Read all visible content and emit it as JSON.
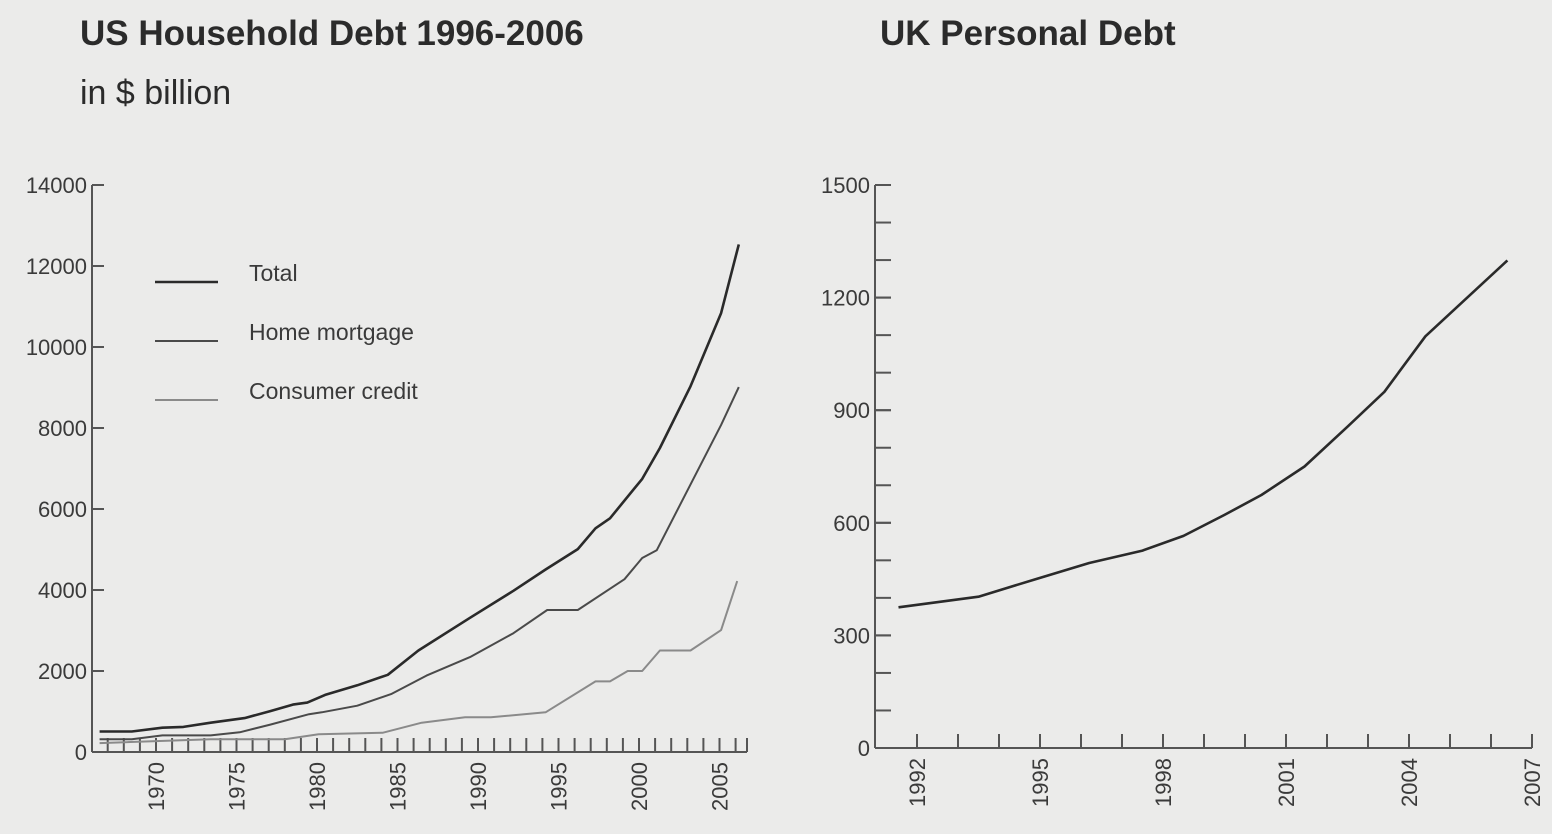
{
  "chart_data": [
    {
      "type": "line",
      "title": "US Household Debt 1996-2006",
      "subtitle": "in $ billion",
      "xlabel": "",
      "ylabel": "",
      "xlim": [
        1965.7,
        2007
      ],
      "ylim": [
        0,
        14000
      ],
      "yticks": [
        0,
        2000,
        4000,
        6000,
        8000,
        10000,
        12000,
        14000
      ],
      "xtick_labels": [
        1970,
        1975,
        1980,
        1985,
        1990,
        1995,
        2000,
        2005
      ],
      "minor_xticks_every": 1,
      "grid": false,
      "legend_placement": "top-left",
      "series": [
        {
          "name": "Total",
          "color": "#2a2a2a",
          "x": [
            1966.5,
            1968.5,
            1970.4,
            1971.7,
            1973.4,
            1975.5,
            1977.1,
            1978.5,
            1979.4,
            1980.5,
            1982.5,
            1984.4,
            1986.3,
            1989.5,
            1992.2,
            1994.2,
            1996.2,
            1997.3,
            1998.2,
            2000.2,
            2001.3,
            2003.2,
            2005.1,
            2006.2
          ],
          "y": [
            505,
            505,
            600,
            620,
            724,
            838,
            1010,
            1171,
            1219,
            1410,
            1648,
            1905,
            2505,
            3314,
            3981,
            4505,
            5010,
            5524,
            5771,
            6743,
            7505,
            9029,
            10838,
            12533
          ]
        },
        {
          "name": "Home mortgage",
          "color": "#4a4a4a",
          "x": [
            1966.5,
            1968.5,
            1970.4,
            1973.4,
            1975.2,
            1977.1,
            1979.5,
            1980.3,
            1982.5,
            1984.6,
            1986.8,
            1989.5,
            1992.2,
            1994.3,
            1996.2,
            1999.1,
            2000.2,
            2001.1,
            2005.1,
            2006.2
          ],
          "y": [
            314,
            314,
            410,
            410,
            486,
            676,
            933,
            981,
            1143,
            1429,
            1886,
            2343,
            2933,
            3505,
            3505,
            4267,
            4790,
            4981,
            8076,
            9010
          ]
        },
        {
          "name": "Consumer credit",
          "color": "#8a8a8a",
          "x": [
            1966.5,
            1973.4,
            1978.0,
            1980.1,
            1984.1,
            1986.5,
            1989.2,
            1990.8,
            1994.2,
            1997.3,
            1998.2,
            1999.3,
            2000.2,
            2001.3,
            2003.2,
            2005.1,
            2006.1
          ],
          "y": [
            219,
            314,
            314,
            438,
            476,
            724,
            857,
            857,
            981,
            1743,
            1743,
            2000,
            2000,
            2505,
            2505,
            3010,
            4219
          ]
        }
      ]
    },
    {
      "type": "line",
      "title": "UK Personal Debt",
      "xlabel": "",
      "ylabel": "",
      "xlim": [
        1991,
        2007
      ],
      "ylim": [
        0,
        1500
      ],
      "yticks": [
        0,
        300,
        600,
        900,
        1200,
        1500
      ],
      "minor_yticks_every": 100,
      "xtick_labels": [
        1992,
        1995,
        1998,
        2001,
        2004,
        2007
      ],
      "minor_xticks_every": 1,
      "grid": false,
      "series": [
        {
          "color": "#2a2a2a",
          "x": [
            1991.55,
            1993.5,
            1994.9,
            1996.2,
            1997.5,
            1998.5,
            1999.5,
            2000.4,
            2001.45,
            2002.5,
            2003.4,
            2004.4,
            2006.4
          ],
          "y": [
            375,
            403,
            450,
            493,
            526,
            565,
            621,
            674,
            750,
            856,
            949,
            1097,
            1299
          ]
        }
      ]
    }
  ]
}
